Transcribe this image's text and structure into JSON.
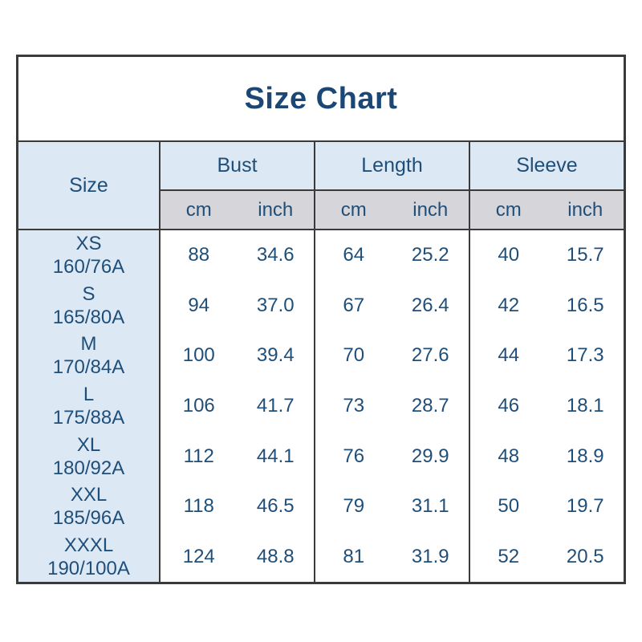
{
  "title": "Size Chart",
  "header": {
    "size_label": "Size",
    "groups": [
      {
        "label": "Bust"
      },
      {
        "label": "Length"
      },
      {
        "label": "Sleeve"
      }
    ],
    "unit_cm": "cm",
    "unit_inch": "inch"
  },
  "rows": [
    {
      "size": "XS",
      "code": "160/76A",
      "bust_cm": "88",
      "bust_inch": "34.6",
      "length_cm": "64",
      "length_inch": "25.2",
      "sleeve_cm": "40",
      "sleeve_inch": "15.7"
    },
    {
      "size": "S",
      "code": "165/80A",
      "bust_cm": "94",
      "bust_inch": "37.0",
      "length_cm": "67",
      "length_inch": "26.4",
      "sleeve_cm": "42",
      "sleeve_inch": "16.5"
    },
    {
      "size": "M",
      "code": "170/84A",
      "bust_cm": "100",
      "bust_inch": "39.4",
      "length_cm": "70",
      "length_inch": "27.6",
      "sleeve_cm": "44",
      "sleeve_inch": "17.3"
    },
    {
      "size": "L",
      "code": "175/88A",
      "bust_cm": "106",
      "bust_inch": "41.7",
      "length_cm": "73",
      "length_inch": "28.7",
      "sleeve_cm": "46",
      "sleeve_inch": "18.1"
    },
    {
      "size": "XL",
      "code": "180/92A",
      "bust_cm": "112",
      "bust_inch": "44.1",
      "length_cm": "76",
      "length_inch": "29.9",
      "sleeve_cm": "48",
      "sleeve_inch": "18.9"
    },
    {
      "size": "XXL",
      "code": "185/96A",
      "bust_cm": "118",
      "bust_inch": "46.5",
      "length_cm": "79",
      "length_inch": "31.1",
      "sleeve_cm": "50",
      "sleeve_inch": "19.7"
    },
    {
      "size": "XXXL",
      "code": "190/100A",
      "bust_cm": "124",
      "bust_inch": "48.8",
      "length_cm": "81",
      "length_inch": "31.9",
      "sleeve_cm": "52",
      "sleeve_inch": "20.5"
    }
  ],
  "colors": {
    "header_bg": "#dce9f5",
    "units_bg": "#d6d6da",
    "border": "#3a3a3a",
    "text": "#1f4e79",
    "title": "#1b4777"
  },
  "chart_data": {
    "type": "table",
    "title": "Size Chart",
    "columns": [
      "Size",
      "Bust cm",
      "Bust inch",
      "Length cm",
      "Length inch",
      "Sleeve cm",
      "Sleeve inch"
    ],
    "rows": [
      [
        "XS 160/76A",
        88,
        34.6,
        64,
        25.2,
        40,
        15.7
      ],
      [
        "S 165/80A",
        94,
        37.0,
        67,
        26.4,
        42,
        16.5
      ],
      [
        "M 170/84A",
        100,
        39.4,
        70,
        27.6,
        44,
        17.3
      ],
      [
        "L 175/88A",
        106,
        41.7,
        73,
        28.7,
        46,
        18.1
      ],
      [
        "XL 180/92A",
        112,
        44.1,
        76,
        29.9,
        48,
        18.9
      ],
      [
        "XXL 185/96A",
        118,
        46.5,
        79,
        31.1,
        50,
        19.7
      ],
      [
        "XXXL 190/100A",
        124,
        48.8,
        81,
        31.9,
        52,
        20.5
      ]
    ]
  }
}
